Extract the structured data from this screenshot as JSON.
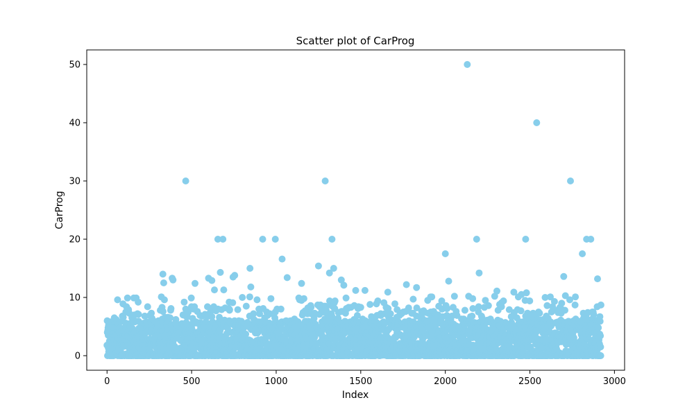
{
  "chart_data": {
    "type": "scatter",
    "title": "Scatter plot of CarProg",
    "xlabel": "Index",
    "ylabel": "CarProg",
    "xlim": [
      -120,
      3060
    ],
    "ylim": [
      -2.5,
      52.5
    ],
    "xticks": [
      0,
      500,
      1000,
      1500,
      2000,
      2500,
      3000
    ],
    "yticks": [
      0,
      10,
      20,
      30,
      40,
      50
    ],
    "grid": false,
    "legend": "none",
    "n_points": 2921,
    "marker_color": "#87ceeb",
    "series": [
      {
        "outliers": [
          {
            "x": 465,
            "y": 30
          },
          {
            "x": 1290,
            "y": 30
          },
          {
            "x": 2740,
            "y": 30
          },
          {
            "x": 2130,
            "y": 50
          },
          {
            "x": 2540,
            "y": 40
          },
          {
            "x": 655,
            "y": 20
          },
          {
            "x": 685,
            "y": 20
          },
          {
            "x": 920,
            "y": 20
          },
          {
            "x": 995,
            "y": 20
          },
          {
            "x": 1330,
            "y": 20
          },
          {
            "x": 2185,
            "y": 20
          },
          {
            "x": 2475,
            "y": 20
          },
          {
            "x": 2835,
            "y": 20
          },
          {
            "x": 2860,
            "y": 20
          },
          {
            "x": 1035,
            "y": 16.6
          },
          {
            "x": 2000,
            "y": 17.5
          },
          {
            "x": 2810,
            "y": 17.5
          },
          {
            "x": 1250,
            "y": 15.4
          },
          {
            "x": 845,
            "y": 15
          },
          {
            "x": 1340,
            "y": 15
          },
          {
            "x": 330,
            "y": 14
          },
          {
            "x": 670,
            "y": 14.3
          },
          {
            "x": 1315,
            "y": 14.2
          },
          {
            "x": 2200,
            "y": 14.2
          },
          {
            "x": 2700,
            "y": 13.6
          },
          {
            "x": 2900,
            "y": 13.2
          },
          {
            "x": 385,
            "y": 13.3
          },
          {
            "x": 390,
            "y": 13
          },
          {
            "x": 600,
            "y": 13.3
          },
          {
            "x": 620,
            "y": 12.9
          },
          {
            "x": 745,
            "y": 13.5
          },
          {
            "x": 755,
            "y": 13.8
          },
          {
            "x": 1065,
            "y": 13.4
          },
          {
            "x": 1385,
            "y": 13
          },
          {
            "x": 1400,
            "y": 12.1
          },
          {
            "x": 2020,
            "y": 12.8
          },
          {
            "x": 335,
            "y": 12.5
          },
          {
            "x": 520,
            "y": 12.4
          },
          {
            "x": 1150,
            "y": 12.4
          },
          {
            "x": 1770,
            "y": 12.2
          },
          {
            "x": 1830,
            "y": 11.7
          },
          {
            "x": 635,
            "y": 11.3
          },
          {
            "x": 690,
            "y": 11.3
          },
          {
            "x": 850,
            "y": 11.8
          },
          {
            "x": 1470,
            "y": 11.2
          },
          {
            "x": 1525,
            "y": 11.2
          },
          {
            "x": 1660,
            "y": 10.9
          },
          {
            "x": 2305,
            "y": 11.1
          },
          {
            "x": 2405,
            "y": 10.9
          },
          {
            "x": 2480,
            "y": 10.8
          },
          {
            "x": 2450,
            "y": 10.5
          },
          {
            "x": 2590,
            "y": 10
          },
          {
            "x": 2710,
            "y": 10.3
          }
        ]
      }
    ]
  }
}
